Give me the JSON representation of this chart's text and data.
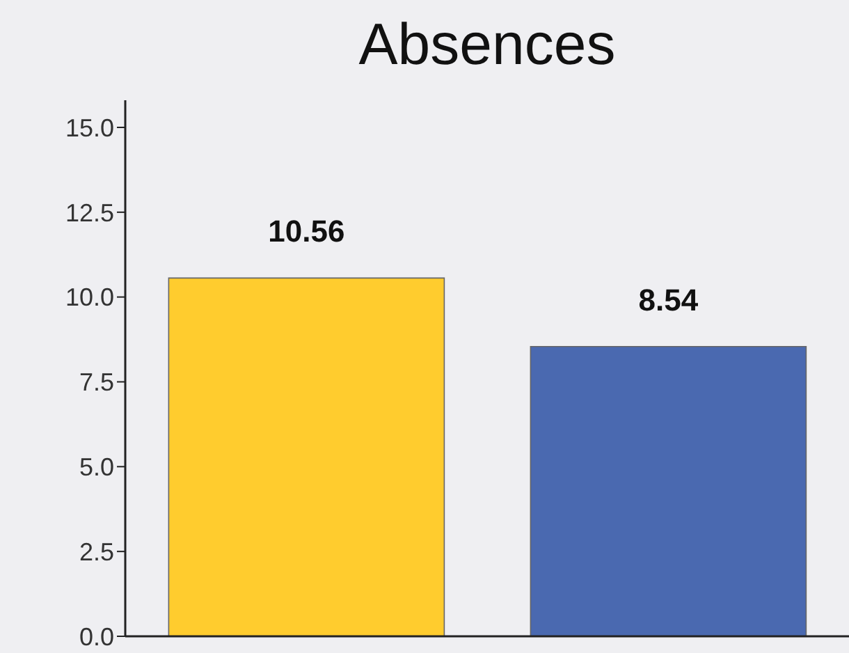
{
  "chart_data": {
    "type": "bar",
    "title": "Absences",
    "categories": [
      null,
      null
    ],
    "values": [
      10.56,
      8.54
    ],
    "colors": [
      "#ffcc2e",
      "#4a69b0"
    ],
    "ylim": [
      0,
      15.8
    ],
    "yticks": [
      {
        "value": 0,
        "label": "0.0"
      },
      2.5,
      {
        "value": 5,
        "label": "5.0"
      },
      7.5,
      {
        "value": 10,
        "label": "10.0"
      },
      12.5,
      {
        "value": 15,
        "label": "15.0"
      }
    ],
    "data_labels": true,
    "grid": false,
    "legend": false
  }
}
